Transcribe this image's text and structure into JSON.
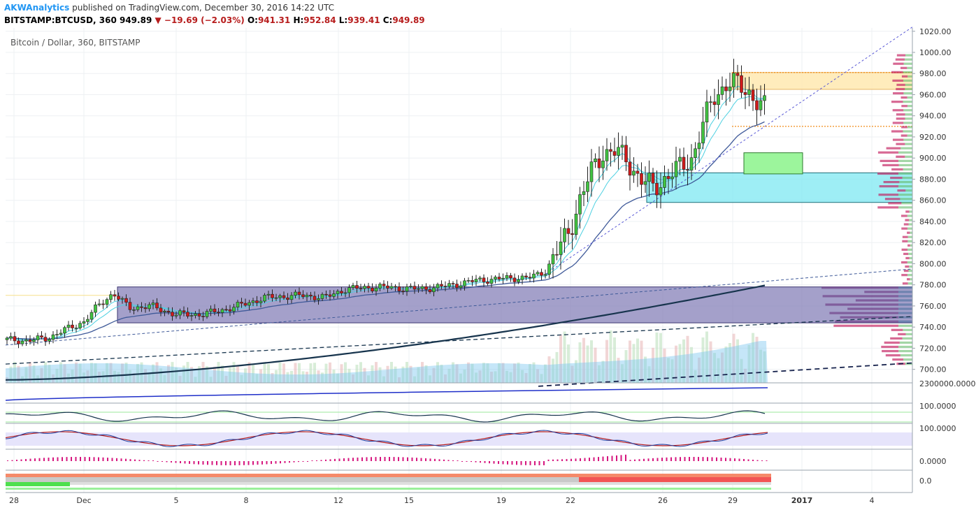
{
  "header": {
    "author": "AKWAnalytics",
    "published": "published on TradingView.com, December 30, 2016 14:22 UTC",
    "symbol": "BITSTAMP:BTCUSD, 360",
    "last": "949.89",
    "change": "−19.69 (−2.03%)",
    "o_label": "O:",
    "o": "941.31",
    "h_label": "H:",
    "h": "952.84",
    "l_label": "L:",
    "l": "939.41",
    "c_label": "C:",
    "c": "949.89"
  },
  "colors": {
    "up": "#41c441",
    "down": "#d11a1a",
    "grid": "#eef0f3",
    "ema_fast": "#4dd0e1",
    "sma": "#3f5a99",
    "long_ma": "#17344d",
    "purple_zone": "#7d78b4",
    "cyan_zone": "#7ee8f2",
    "orange_zone": "#ffe9b0",
    "green_zone": "#9cf59c"
  },
  "chart_data": {
    "type": "candlestick",
    "title": "Bitcoin / Dollar, 360, BITSTAMP",
    "y_axis": {
      "ticks": [
        "1020.00",
        "1000.00",
        "980.00",
        "960.00",
        "940.00",
        "920.00",
        "900.00",
        "880.00",
        "860.00",
        "840.00",
        "820.00",
        "800.00",
        "780.00",
        "760.00",
        "740.00",
        "720.00",
        "700.00"
      ],
      "range": [
        684,
        1024
      ]
    },
    "x_axis": {
      "ticks": [
        "28",
        "Dec",
        "5",
        "8",
        "12",
        "15",
        "19",
        "22",
        "26",
        "29",
        "2017",
        "4"
      ]
    },
    "zones": [
      {
        "name": "purple consolidation box",
        "y_range": [
          744,
          778
        ]
      },
      {
        "name": "cyan support box",
        "y_range": [
          858,
          886
        ]
      },
      {
        "name": "green box",
        "y_range": [
          885,
          905
        ]
      },
      {
        "name": "orange resistance box",
        "y_range": [
          965,
          981
        ]
      }
    ],
    "horizontal_lines": [
      930,
      981
    ],
    "sub_panels": {
      "volume_axis": "2300000.0000",
      "panel2_axis": "100.0000",
      "panel3_axis": "100.0000",
      "panel4_axis": "0.0000",
      "panel5_axis": "0.0"
    }
  }
}
